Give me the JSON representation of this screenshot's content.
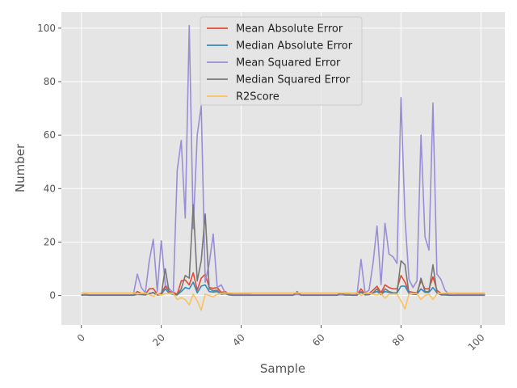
{
  "chart_data": {
    "type": "line",
    "title": "",
    "xlabel": "Sample",
    "ylabel": "Number",
    "xlim": [
      -5,
      106
    ],
    "ylim": [
      -11,
      106
    ],
    "xticks": [
      0,
      20,
      40,
      60,
      80,
      100
    ],
    "xtick_labels": [
      "0",
      "20",
      "40",
      "60",
      "80",
      "100"
    ],
    "yticks": [
      0,
      20,
      40,
      60,
      80,
      100
    ],
    "ytick_labels": [
      "0",
      "20",
      "40",
      "60",
      "80",
      "100"
    ],
    "grid": true,
    "legend": "top-center",
    "style": "ggplot",
    "x": [
      0,
      1,
      2,
      3,
      4,
      5,
      6,
      7,
      8,
      9,
      10,
      11,
      12,
      13,
      14,
      15,
      16,
      17,
      18,
      19,
      20,
      21,
      22,
      23,
      24,
      25,
      26,
      27,
      28,
      29,
      30,
      31,
      32,
      33,
      34,
      35,
      36,
      37,
      38,
      39,
      40,
      41,
      42,
      43,
      44,
      45,
      46,
      47,
      48,
      49,
      50,
      51,
      52,
      53,
      54,
      55,
      56,
      57,
      58,
      59,
      60,
      61,
      62,
      63,
      64,
      65,
      66,
      67,
      68,
      69,
      70,
      71,
      72,
      73,
      74,
      75,
      76,
      77,
      78,
      79,
      80,
      81,
      82,
      83,
      84,
      85,
      86,
      87,
      88,
      89,
      90,
      91,
      92,
      93,
      94,
      95,
      96,
      97,
      98,
      99,
      100,
      101
    ],
    "series": [
      {
        "name": "Mean Absolute Error",
        "color": "#E24A33",
        "values": [
          0.3,
          0.4,
          0.3,
          0.3,
          0.3,
          0.3,
          0.3,
          0.3,
          0.3,
          0.3,
          0.3,
          0.3,
          0.3,
          0.3,
          1.5,
          0.8,
          0.5,
          2.5,
          2.6,
          0.5,
          0.8,
          3.5,
          1.5,
          1.2,
          0.5,
          5.5,
          5.8,
          4,
          8.5,
          2,
          6.5,
          8,
          3,
          2.7,
          3,
          1.2,
          1.5,
          0.5,
          0.4,
          0.4,
          0.4,
          0.4,
          0.4,
          0.3,
          0.3,
          0.3,
          0.3,
          0.3,
          0.3,
          0.3,
          0.3,
          0.3,
          0.3,
          0.3,
          0.8,
          0.3,
          0.3,
          0.3,
          0.3,
          0.3,
          0.3,
          0.3,
          0.3,
          0.3,
          0.3,
          0.6,
          0.4,
          0.4,
          0.3,
          0.3,
          2.5,
          0.5,
          0.8,
          2,
          3.5,
          1,
          4,
          3,
          2.5,
          2.5,
          7.5,
          5,
          1.5,
          1.2,
          1,
          5.5,
          2.5,
          2.5,
          7,
          2,
          0.8,
          0.5,
          0.4,
          0.4,
          0.4,
          0.4,
          0.4,
          0.4,
          0.4,
          0.4,
          0.4,
          0.4
        ]
      },
      {
        "name": "Median Absolute Error",
        "color": "#348ABD",
        "values": [
          0.2,
          0.3,
          0.2,
          0.2,
          0.2,
          0.2,
          0.2,
          0.2,
          0.2,
          0.2,
          0.2,
          0.2,
          0.2,
          0.2,
          0.6,
          0.4,
          0.3,
          0.8,
          1,
          0.3,
          0.4,
          2.5,
          0.8,
          0.6,
          0.3,
          1.5,
          3,
          2.5,
          5,
          1,
          3.5,
          4,
          1.5,
          1.3,
          1.5,
          0.6,
          0.8,
          0.3,
          0.2,
          0.2,
          0.2,
          0.2,
          0.2,
          0.2,
          0.2,
          0.2,
          0.2,
          0.2,
          0.2,
          0.2,
          0.2,
          0.2,
          0.2,
          0.2,
          0.4,
          0.2,
          0.2,
          0.2,
          0.2,
          0.2,
          0.2,
          0.2,
          0.2,
          0.2,
          0.2,
          0.3,
          0.2,
          0.2,
          0.2,
          0.2,
          1.2,
          0.3,
          0.4,
          1,
          1.5,
          0.5,
          1.5,
          1.2,
          1,
          1,
          3.5,
          3.5,
          0.8,
          0.6,
          0.5,
          2.5,
          1.2,
          1.2,
          3,
          1,
          0.4,
          0.3,
          0.2,
          0.2,
          0.2,
          0.2,
          0.2,
          0.2,
          0.2,
          0.2,
          0.2,
          0.2
        ]
      },
      {
        "name": "Mean Squared Error",
        "color": "#988ED5",
        "values": [
          0.2,
          0.3,
          0.2,
          0.2,
          0.2,
          0.2,
          0.2,
          0.2,
          0.2,
          0.2,
          0.2,
          0.2,
          0.2,
          0.2,
          8,
          3,
          1,
          13,
          21,
          1.5,
          20.5,
          4,
          2.5,
          1,
          47,
          58,
          29,
          101,
          25,
          60,
          71,
          5,
          12,
          23,
          3,
          4,
          1,
          0.3,
          0.3,
          0.3,
          0.3,
          0.3,
          0.3,
          0.3,
          0.3,
          0.3,
          0.3,
          0.3,
          0.3,
          0.3,
          0.3,
          0.3,
          0.3,
          0.3,
          0.5,
          0.3,
          0.3,
          0.3,
          0.3,
          0.3,
          0.3,
          0.3,
          0.3,
          0.3,
          0.3,
          0.5,
          0.3,
          0.3,
          0.3,
          0.5,
          13.5,
          1,
          2,
          12,
          26,
          4,
          27,
          15.5,
          14.5,
          12,
          74,
          29,
          6,
          3,
          5.5,
          60,
          22,
          17,
          72,
          8,
          6,
          2,
          0.5,
          0.4,
          0.3,
          0.3,
          0.3,
          0.3,
          0.3,
          0.3,
          0.3,
          0.3
        ]
      },
      {
        "name": "Median Squared Error",
        "color": "#777777",
        "values": [
          0.1,
          0.2,
          0.1,
          0.1,
          0.1,
          0.1,
          0.1,
          0.1,
          0.1,
          0.1,
          0.1,
          0.1,
          0.1,
          0.1,
          0.4,
          0.3,
          0.2,
          0.6,
          1.2,
          0.2,
          0.3,
          10,
          1,
          0.4,
          0.2,
          2.5,
          7.5,
          6.5,
          34,
          5.5,
          13,
          30.5,
          2.5,
          1.8,
          2,
          0.5,
          0.7,
          0.2,
          0.1,
          0.1,
          0.1,
          0.1,
          0.1,
          0.1,
          0.1,
          0.1,
          0.1,
          0.1,
          0.1,
          0.1,
          0.1,
          0.1,
          0.1,
          0.1,
          1.5,
          0.1,
          0.1,
          0.1,
          0.1,
          0.1,
          0.1,
          0.1,
          0.1,
          0.1,
          0.1,
          1,
          0.2,
          0.2,
          0.1,
          0.1,
          1.5,
          0.2,
          0.3,
          1,
          2.5,
          0.3,
          2.5,
          1.5,
          1,
          1,
          13,
          11.5,
          0.8,
          0.5,
          0.4,
          6.5,
          1.5,
          1.5,
          11.5,
          1,
          0.2,
          0.2,
          0.1,
          0.1,
          0.1,
          0.1,
          0.1,
          0.1,
          0.1,
          0.1,
          0.1,
          0.1
        ]
      },
      {
        "name": "R2Score",
        "color": "#FBC15E",
        "values": [
          1,
          1,
          1,
          1,
          1,
          1,
          1,
          1,
          1,
          1,
          1,
          1,
          1,
          1,
          0.6,
          0.8,
          0.9,
          0.3,
          -0.3,
          0.8,
          0.2,
          0.7,
          0.8,
          0.8,
          -1.5,
          -0.8,
          -1.5,
          -3.5,
          0.5,
          -2,
          -5.5,
          0.5,
          0,
          -0.5,
          0.5,
          0.8,
          0.9,
          1,
          1,
          1,
          1,
          1,
          1,
          1,
          1,
          1,
          1,
          1,
          1,
          1,
          1,
          1,
          1,
          1,
          1,
          1,
          1,
          1,
          1,
          1,
          1,
          1,
          1,
          1,
          1,
          1,
          1,
          1,
          1,
          1,
          0,
          0.9,
          0.8,
          0.5,
          0.2,
          0.8,
          -1,
          0.5,
          0.6,
          0.5,
          -2,
          -5,
          0.5,
          0.8,
          0.7,
          -1.5,
          0,
          0.5,
          -1.5,
          0.6,
          0.8,
          0.9,
          1,
          1,
          1,
          1,
          1,
          1,
          1,
          1,
          1,
          1
        ]
      }
    ]
  }
}
